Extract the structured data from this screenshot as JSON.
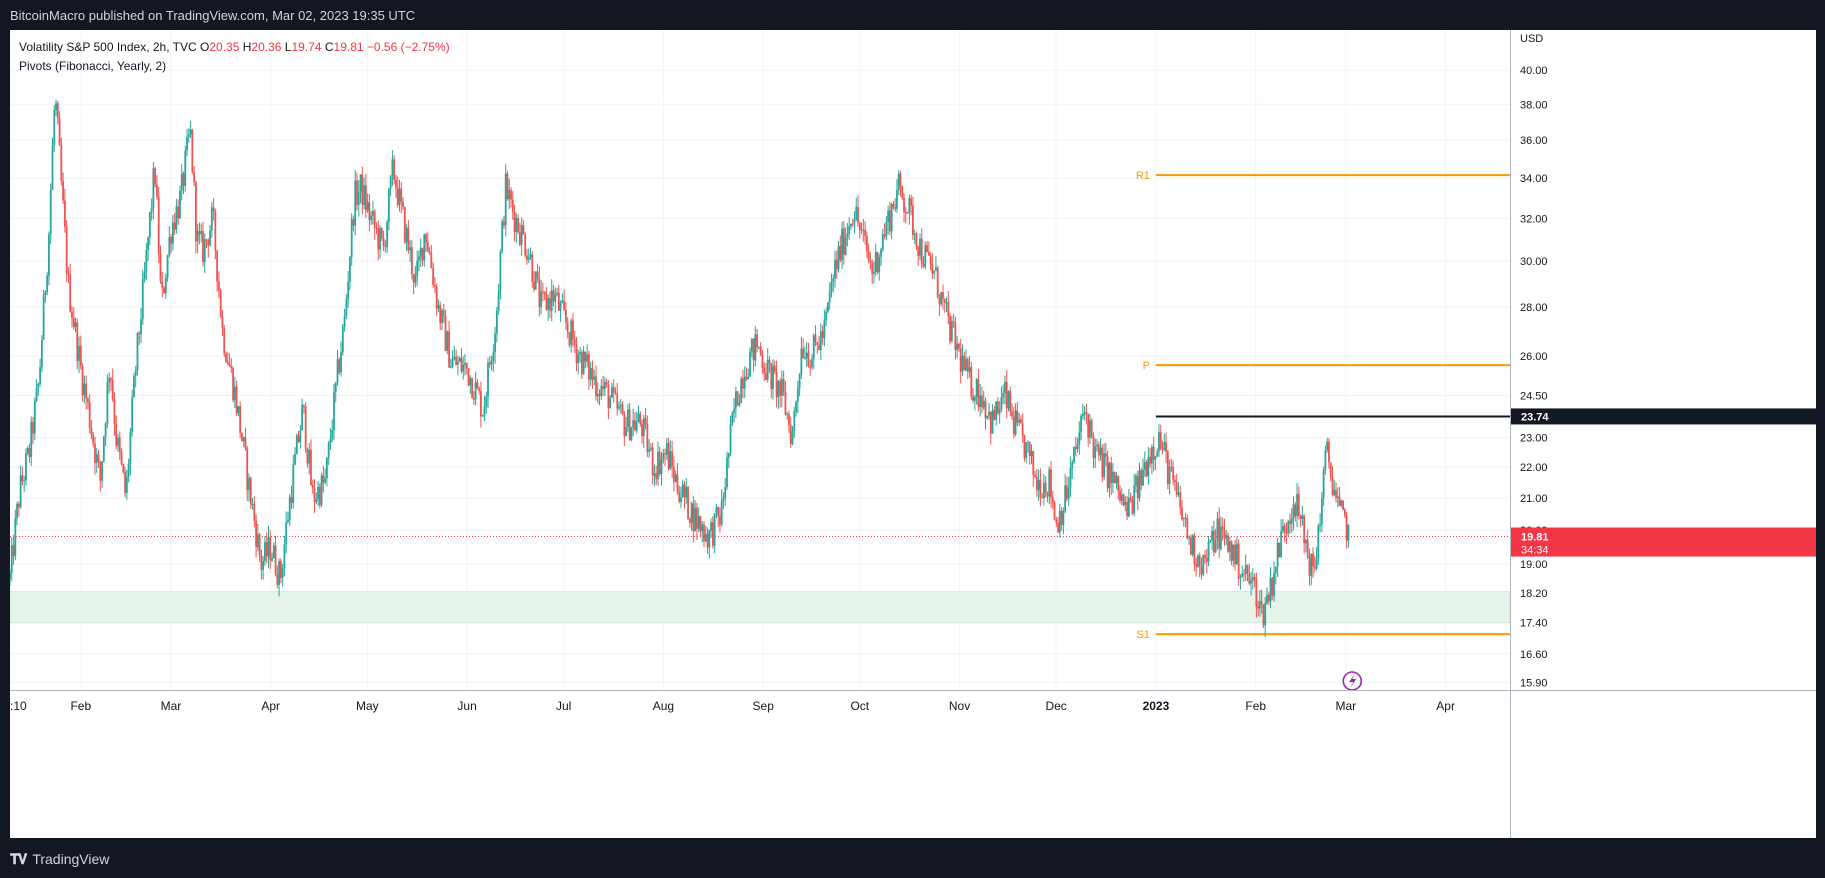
{
  "header": {
    "publisher": "BitcoinMacro published on TradingView.com, Mar 02, 2023 19:35 UTC"
  },
  "footer": {
    "brand": "TradingView"
  },
  "legend": {
    "symbol": "Volatility S&P 500 Index, 2h, TVC",
    "open_label": "O",
    "open": "20.35",
    "high_label": "H",
    "high": "20.36",
    "low_label": "L",
    "low": "19.74",
    "close_label": "C",
    "close": "19.81",
    "change": "−0.56 (−2.75%)",
    "indicator": "Pivots (Fibonacci, Yearly, 2)"
  },
  "colors": {
    "up": "#26a69a",
    "down": "#ef5350",
    "pivot": "#ff9800",
    "zone": "#e6f4ea",
    "price_badge": "#f23645",
    "grid": "#f0f3fa",
    "axis_text": "#131722"
  },
  "chart_data": {
    "type": "candlestick",
    "currency_label": "USD",
    "scale": "log",
    "y_ticks": [
      "40.00",
      "38.00",
      "36.00",
      "34.00",
      "32.00",
      "30.00",
      "28.00",
      "26.00",
      "24.50",
      "23.00",
      "22.00",
      "21.00",
      "20.00",
      "19.00",
      "18.20",
      "17.40",
      "16.60",
      "15.90"
    ],
    "x_ticks": [
      {
        "date": "2022-01-10",
        "label": ":10"
      },
      {
        "date": "2022-02-01",
        "label": "Feb"
      },
      {
        "date": "2022-03-01",
        "label": "Mar"
      },
      {
        "date": "2022-04-01",
        "label": "Apr"
      },
      {
        "date": "2022-05-01",
        "label": "May"
      },
      {
        "date": "2022-06-01",
        "label": "Jun"
      },
      {
        "date": "2022-07-01",
        "label": "Jul"
      },
      {
        "date": "2022-08-01",
        "label": "Aug"
      },
      {
        "date": "2022-09-01",
        "label": "Sep"
      },
      {
        "date": "2022-10-01",
        "label": "Oct"
      },
      {
        "date": "2022-11-01",
        "label": "Nov"
      },
      {
        "date": "2022-12-01",
        "label": "Dec"
      },
      {
        "date": "2023-01-01",
        "label": "2023",
        "bold": true
      },
      {
        "date": "2023-02-01",
        "label": "Feb"
      },
      {
        "date": "2023-03-01",
        "label": "Mar"
      },
      {
        "date": "2023-04-01",
        "label": "Apr"
      }
    ],
    "price_path": [
      [
        "2022-01-10",
        18.6
      ],
      [
        "2022-01-13",
        21.2
      ],
      [
        "2022-01-16",
        22.5
      ],
      [
        "2022-01-19",
        25.0
      ],
      [
        "2022-01-22",
        31.0
      ],
      [
        "2022-01-24",
        38.5
      ],
      [
        "2022-01-26",
        33.5
      ],
      [
        "2022-01-28",
        29.0
      ],
      [
        "2022-02-01",
        25.5
      ],
      [
        "2022-02-04",
        23.5
      ],
      [
        "2022-02-07",
        21.5
      ],
      [
        "2022-02-10",
        25.8
      ],
      [
        "2022-02-12",
        23.0
      ],
      [
        "2022-02-15",
        21.0
      ],
      [
        "2022-02-18",
        25.5
      ],
      [
        "2022-02-21",
        29.5
      ],
      [
        "2022-02-24",
        34.5
      ],
      [
        "2022-02-26",
        28.0
      ],
      [
        "2022-03-01",
        31.5
      ],
      [
        "2022-03-04",
        33.0
      ],
      [
        "2022-03-07",
        36.5
      ],
      [
        "2022-03-09",
        31.0
      ],
      [
        "2022-03-11",
        30.5
      ],
      [
        "2022-03-14",
        32.0
      ],
      [
        "2022-03-17",
        27.0
      ],
      [
        "2022-03-21",
        24.5
      ],
      [
        "2022-03-25",
        21.5
      ],
      [
        "2022-03-29",
        19.0
      ],
      [
        "2022-04-01",
        19.5
      ],
      [
        "2022-04-04",
        18.6
      ],
      [
        "2022-04-07",
        21.0
      ],
      [
        "2022-04-11",
        24.0
      ],
      [
        "2022-04-14",
        21.0
      ],
      [
        "2022-04-18",
        21.5
      ],
      [
        "2022-04-21",
        24.5
      ],
      [
        "2022-04-24",
        27.5
      ],
      [
        "2022-04-27",
        33.0
      ],
      [
        "2022-04-29",
        33.5
      ],
      [
        "2022-05-02",
        32.0
      ],
      [
        "2022-05-06",
        30.5
      ],
      [
        "2022-05-09",
        34.5
      ],
      [
        "2022-05-12",
        32.0
      ],
      [
        "2022-05-16",
        29.0
      ],
      [
        "2022-05-19",
        31.5
      ],
      [
        "2022-05-23",
        28.0
      ],
      [
        "2022-05-27",
        25.8
      ],
      [
        "2022-06-01",
        25.5
      ],
      [
        "2022-06-06",
        24.0
      ],
      [
        "2022-06-10",
        27.5
      ],
      [
        "2022-06-13",
        33.5
      ],
      [
        "2022-06-16",
        32.0
      ],
      [
        "2022-06-20",
        30.5
      ],
      [
        "2022-06-24",
        28.0
      ],
      [
        "2022-06-28",
        28.5
      ],
      [
        "2022-07-01",
        27.5
      ],
      [
        "2022-07-06",
        26.0
      ],
      [
        "2022-07-11",
        25.0
      ],
      [
        "2022-07-15",
        24.5
      ],
      [
        "2022-07-20",
        23.5
      ],
      [
        "2022-07-25",
        23.5
      ],
      [
        "2022-07-29",
        22.0
      ],
      [
        "2022-08-02",
        22.5
      ],
      [
        "2022-08-05",
        21.5
      ],
      [
        "2022-08-10",
        20.5
      ],
      [
        "2022-08-15",
        19.8
      ],
      [
        "2022-08-19",
        20.5
      ],
      [
        "2022-08-23",
        24.0
      ],
      [
        "2022-08-26",
        25.5
      ],
      [
        "2022-08-30",
        26.5
      ],
      [
        "2022-09-02",
        25.5
      ],
      [
        "2022-09-07",
        24.5
      ],
      [
        "2022-09-10",
        23.0
      ],
      [
        "2022-09-13",
        26.5
      ],
      [
        "2022-09-16",
        26.0
      ],
      [
        "2022-09-20",
        27.0
      ],
      [
        "2022-09-23",
        29.5
      ],
      [
        "2022-09-26",
        31.0
      ],
      [
        "2022-09-29",
        32.5
      ],
      [
        "2022-10-02",
        31.0
      ],
      [
        "2022-10-05",
        29.5
      ],
      [
        "2022-10-09",
        31.5
      ],
      [
        "2022-10-13",
        33.5
      ],
      [
        "2022-10-16",
        32.5
      ],
      [
        "2022-10-20",
        30.5
      ],
      [
        "2022-10-24",
        29.5
      ],
      [
        "2022-10-28",
        27.5
      ],
      [
        "2022-11-01",
        26.0
      ],
      [
        "2022-11-04",
        25.0
      ],
      [
        "2022-11-08",
        24.5
      ],
      [
        "2022-11-11",
        23.5
      ],
      [
        "2022-11-15",
        24.5
      ],
      [
        "2022-11-18",
        23.5
      ],
      [
        "2022-11-22",
        22.5
      ],
      [
        "2022-11-25",
        21.5
      ],
      [
        "2022-11-29",
        21.5
      ],
      [
        "2022-12-01",
        20.2
      ],
      [
        "2022-12-04",
        21.0
      ],
      [
        "2022-12-07",
        22.5
      ],
      [
        "2022-12-10",
        24.0
      ],
      [
        "2022-12-13",
        22.5
      ],
      [
        "2022-12-16",
        22.0
      ],
      [
        "2022-12-19",
        21.5
      ],
      [
        "2022-12-23",
        20.5
      ],
      [
        "2022-12-27",
        21.5
      ],
      [
        "2022-12-30",
        22.5
      ],
      [
        "2023-01-02",
        23.0
      ],
      [
        "2023-01-06",
        21.5
      ],
      [
        "2023-01-09",
        20.5
      ],
      [
        "2023-01-12",
        19.5
      ],
      [
        "2023-01-16",
        19.0
      ],
      [
        "2023-01-20",
        20.0
      ],
      [
        "2023-01-24",
        19.5
      ],
      [
        "2023-01-28",
        18.8
      ],
      [
        "2023-02-01",
        18.3
      ],
      [
        "2023-02-03",
        17.6
      ],
      [
        "2023-02-06",
        18.5
      ],
      [
        "2023-02-09",
        19.8
      ],
      [
        "2023-02-13",
        21.0
      ],
      [
        "2023-02-16",
        19.8
      ],
      [
        "2023-02-19",
        18.6
      ],
      [
        "2023-02-21",
        20.5
      ],
      [
        "2023-02-23",
        22.5
      ],
      [
        "2023-02-25",
        21.5
      ],
      [
        "2023-02-27",
        20.5
      ],
      [
        "2023-03-01",
        20.2
      ],
      [
        "2023-03-02",
        19.81
      ]
    ],
    "pivots": [
      {
        "label": "R1",
        "value": 34.15
      },
      {
        "label": "P",
        "value": 25.65
      },
      {
        "label": "S1",
        "value": 17.1
      }
    ],
    "pivots_start": "2023-01-01",
    "zone": {
      "low": 17.4,
      "high": 18.23
    },
    "horizontal_line": {
      "value": 23.74,
      "start": "2023-01-01",
      "label": "23.74"
    },
    "last_price": {
      "value": 19.81,
      "label": "19.81",
      "countdown": "34:34"
    },
    "x_range": [
      "2022-01-10",
      "2023-04-21"
    ],
    "y_range": [
      15.72,
      42.5
    ]
  }
}
